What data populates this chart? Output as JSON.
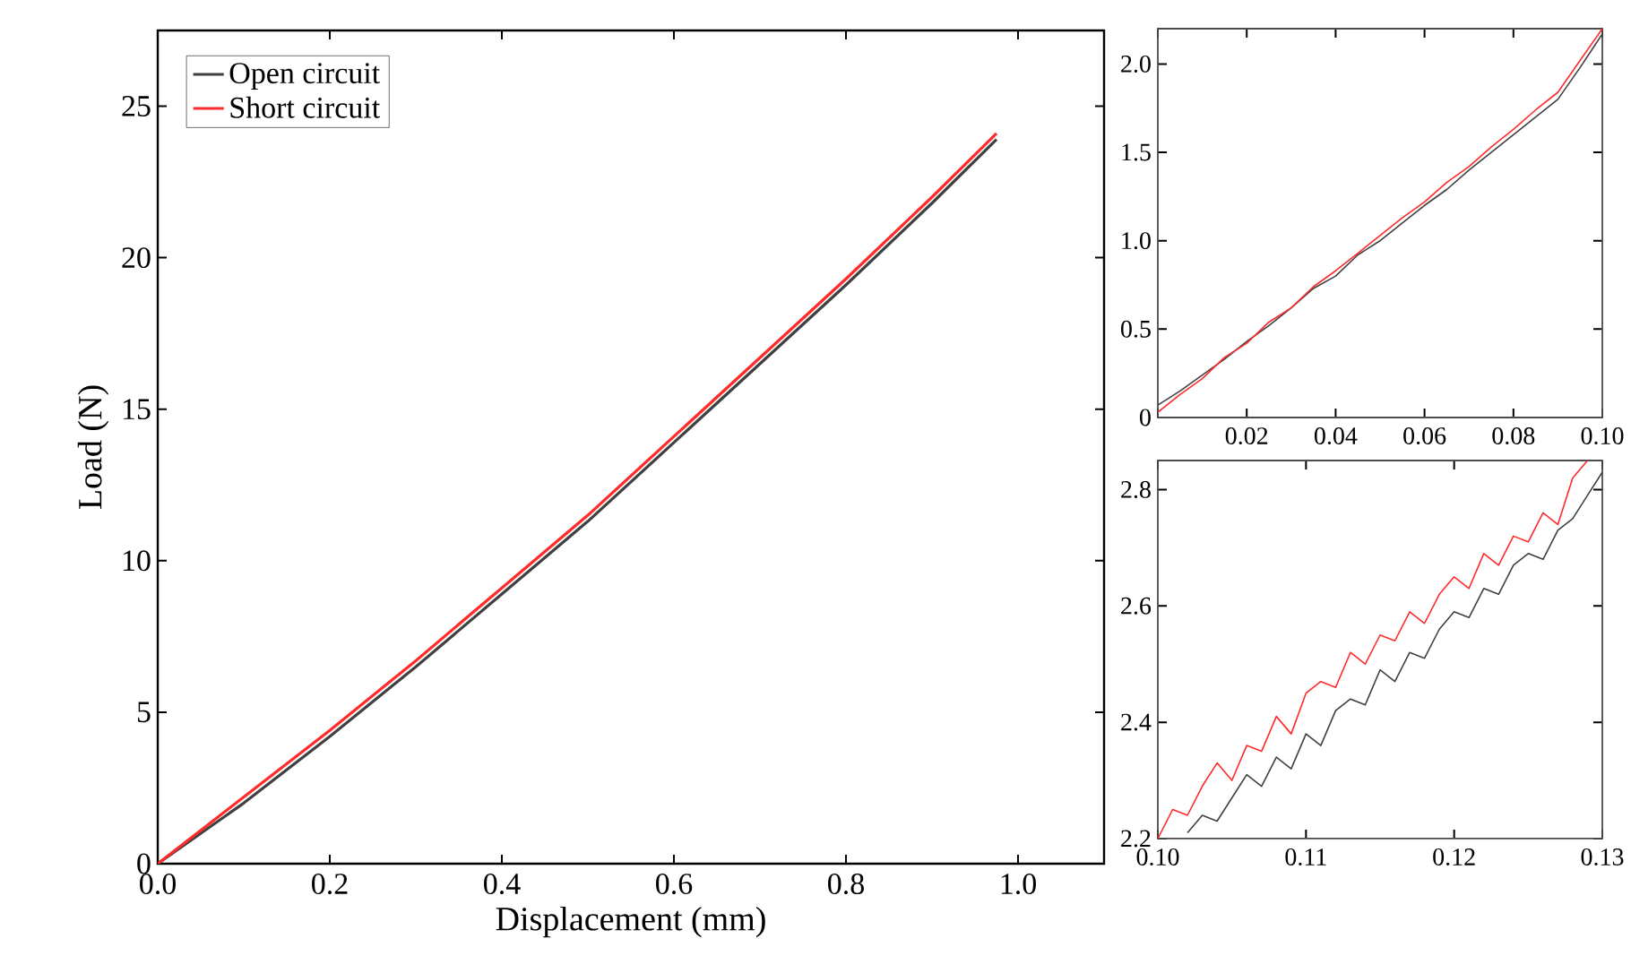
{
  "chart_data": [
    {
      "type": "line",
      "xlabel": "Displacement (mm)",
      "ylabel": "Load (N)",
      "xlim": [
        0,
        1.1
      ],
      "ylim": [
        0,
        27.5
      ],
      "xticks": [
        {
          "value": 0,
          "label": "0.0"
        },
        {
          "value": 0.2,
          "label": "0.2"
        },
        {
          "value": 0.4,
          "label": "0.4"
        },
        {
          "value": 0.6,
          "label": "0.6"
        },
        {
          "value": 0.8,
          "label": "0.8"
        },
        {
          "value": 1.0,
          "label": "1.0"
        }
      ],
      "yticks": [
        0,
        5,
        10,
        15,
        20,
        25
      ],
      "legend": "top left",
      "series": [
        {
          "name": "Open circuit",
          "color": "#404040",
          "x": [
            0,
            0.1,
            0.2,
            0.3,
            0.4,
            0.5,
            0.6,
            0.7,
            0.8,
            0.9,
            0.975
          ],
          "values": [
            0,
            2.0,
            4.2,
            6.5,
            8.9,
            11.3,
            13.9,
            16.5,
            19.1,
            21.8,
            23.9
          ]
        },
        {
          "name": "Short circuit",
          "color": "#ff2a2a",
          "x": [
            0,
            0.1,
            0.2,
            0.3,
            0.4,
            0.5,
            0.6,
            0.7,
            0.8,
            0.9,
            0.975
          ],
          "values": [
            0,
            2.2,
            4.4,
            6.7,
            9.1,
            11.5,
            14.1,
            16.7,
            19.3,
            22.0,
            24.1
          ]
        }
      ]
    },
    {
      "type": "line",
      "xlim": [
        0,
        0.1
      ],
      "ylim": [
        0,
        2.2
      ],
      "xticks": [
        {
          "value": 0,
          "label": null
        },
        0.02,
        0.04,
        0.06,
        0.08,
        {
          "value": 0.1,
          "label": "0.10"
        }
      ],
      "yticks": [
        0,
        0.5,
        {
          "value": 1.0,
          "label": "1.0"
        },
        1.5,
        {
          "value": 2.0,
          "label": "2.0"
        }
      ],
      "series": [
        {
          "color": "#404040",
          "x": [
            0,
            0.005,
            0.01,
            0.015,
            0.02,
            0.025,
            0.03,
            0.035,
            0.04,
            0.045,
            0.05,
            0.055,
            0.06,
            0.065,
            0.07,
            0.075,
            0.08,
            0.085,
            0.09,
            0.095,
            0.1
          ],
          "values": [
            0.07,
            0.15,
            0.24,
            0.33,
            0.43,
            0.52,
            0.62,
            0.73,
            0.8,
            0.92,
            1.0,
            1.1,
            1.2,
            1.29,
            1.4,
            1.5,
            1.6,
            1.7,
            1.8,
            1.98,
            2.17
          ]
        },
        {
          "color": "#ff2a2a",
          "x": [
            0,
            0.005,
            0.01,
            0.015,
            0.02,
            0.025,
            0.03,
            0.035,
            0.04,
            0.045,
            0.05,
            0.055,
            0.06,
            0.065,
            0.07,
            0.075,
            0.08,
            0.085,
            0.09,
            0.095,
            0.1
          ],
          "values": [
            0.03,
            0.13,
            0.22,
            0.34,
            0.42,
            0.54,
            0.62,
            0.74,
            0.83,
            0.93,
            1.03,
            1.13,
            1.22,
            1.33,
            1.42,
            1.53,
            1.63,
            1.74,
            1.84,
            2.02,
            2.2
          ]
        }
      ]
    },
    {
      "type": "line",
      "xlim": [
        0.1,
        0.13
      ],
      "ylim": [
        2.2,
        2.85
      ],
      "xticks": [
        {
          "value": 0.1,
          "label": "0.10"
        },
        0.11,
        {
          "value": 0.12,
          "label": "0.12"
        },
        {
          "value": 0.13,
          "label": "0.13"
        }
      ],
      "yticks": [
        2.2,
        2.4,
        2.6,
        2.8
      ],
      "series": [
        {
          "color": "#404040",
          "x": [
            0.102,
            0.103,
            0.104,
            0.105,
            0.106,
            0.107,
            0.108,
            0.109,
            0.11,
            0.111,
            0.112,
            0.113,
            0.114,
            0.115,
            0.116,
            0.117,
            0.118,
            0.119,
            0.12,
            0.121,
            0.122,
            0.123,
            0.124,
            0.125,
            0.126,
            0.127,
            0.128,
            0.129,
            0.13
          ],
          "values": [
            2.21,
            2.24,
            2.23,
            2.27,
            2.31,
            2.29,
            2.34,
            2.32,
            2.38,
            2.36,
            2.42,
            2.44,
            2.43,
            2.49,
            2.47,
            2.52,
            2.51,
            2.56,
            2.59,
            2.58,
            2.63,
            2.62,
            2.67,
            2.69,
            2.68,
            2.73,
            2.75,
            2.79,
            2.83
          ]
        },
        {
          "color": "#ff2a2a",
          "x": [
            0.1,
            0.101,
            0.102,
            0.103,
            0.104,
            0.105,
            0.106,
            0.107,
            0.108,
            0.109,
            0.11,
            0.111,
            0.112,
            0.113,
            0.114,
            0.115,
            0.116,
            0.117,
            0.118,
            0.119,
            0.12,
            0.121,
            0.122,
            0.123,
            0.124,
            0.125,
            0.126,
            0.127,
            0.128,
            0.129
          ],
          "values": [
            2.2,
            2.25,
            2.24,
            2.29,
            2.33,
            2.3,
            2.36,
            2.35,
            2.41,
            2.38,
            2.45,
            2.47,
            2.46,
            2.52,
            2.5,
            2.55,
            2.54,
            2.59,
            2.57,
            2.62,
            2.65,
            2.63,
            2.69,
            2.67,
            2.72,
            2.71,
            2.76,
            2.74,
            2.82,
            2.85
          ]
        }
      ]
    }
  ]
}
